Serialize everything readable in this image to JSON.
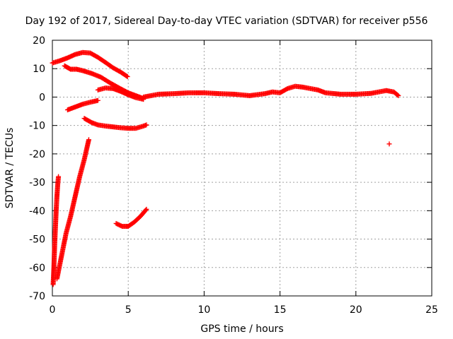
{
  "chart_data": {
    "type": "scatter",
    "title": "Day 192 of 2017, Sidereal Day-to-day VTEC variation (SDTVAR) for receiver p556",
    "xlabel": "GPS time / hours",
    "ylabel": "SDTVAR / TECUs",
    "xlim": [
      0,
      25
    ],
    "ylim": [
      -70,
      20
    ],
    "xticks": [
      0,
      5,
      10,
      15,
      20,
      25
    ],
    "yticks": [
      -70,
      -60,
      -50,
      -40,
      -30,
      -20,
      -10,
      0,
      10,
      20
    ],
    "grid": true,
    "legend": "none",
    "marker": "plus",
    "color": "#ff0000",
    "series": [
      {
        "segments": [
          {
            "x": [
              0.0,
              0.5,
              1.0,
              1.5,
              2.0,
              2.5,
              3.0,
              3.5,
              4.0,
              4.5,
              4.95
            ],
            "y": [
              12.0,
              12.8,
              13.8,
              15.0,
              15.7,
              15.5,
              14.0,
              12.2,
              10.3,
              8.8,
              7.2
            ]
          },
          {
            "x": [
              0.8,
              1.2,
              1.6,
              2.0,
              2.6,
              3.2,
              3.8,
              4.4,
              5.0,
              5.5,
              6.0
            ],
            "y": [
              11.0,
              9.8,
              9.8,
              9.3,
              8.3,
              7.0,
              5.0,
              3.2,
              1.5,
              0.5,
              -0.5
            ]
          },
          {
            "x": [
              3.0,
              3.5,
              4.0,
              4.5,
              5.0,
              5.5,
              6.0
            ],
            "y": [
              2.5,
              3.2,
              3.0,
              2.0,
              0.8,
              -0.2,
              -0.8
            ]
          },
          {
            "x": [
              1.0,
              1.5,
              2.0,
              2.5,
              3.0
            ],
            "y": [
              -4.5,
              -3.5,
              -2.5,
              -1.8,
              -1.2
            ]
          },
          {
            "x": [
              2.1,
              2.6,
              3.0,
              3.5,
              4.0,
              4.5,
              5.0,
              5.5,
              6.0,
              6.2
            ],
            "y": [
              -7.5,
              -9.0,
              -9.8,
              -10.2,
              -10.5,
              -10.8,
              -11.0,
              -11.0,
              -10.2,
              -9.8
            ]
          },
          {
            "x": [
              6.0,
              7.0,
              8.0,
              9.0,
              10.0,
              11.0,
              12.0,
              13.0,
              14.0,
              14.5,
              15.0,
              15.5,
              16.0,
              16.5,
              17.0,
              17.5,
              18.0,
              19.0,
              20.0,
              21.0,
              21.5,
              22.0,
              22.5,
              22.8
            ],
            "y": [
              0.0,
              1.0,
              1.2,
              1.5,
              1.5,
              1.2,
              1.0,
              0.5,
              1.2,
              1.8,
              1.5,
              3.0,
              3.8,
              3.5,
              3.0,
              2.5,
              1.5,
              1.0,
              1.0,
              1.3,
              1.8,
              2.3,
              1.8,
              0.5
            ]
          },
          {
            "x": [
              22.2
            ],
            "y": [
              -16.5
            ]
          },
          {
            "x": [
              0.05,
              0.1,
              0.15,
              0.2,
              0.25,
              0.3,
              0.35,
              0.4
            ],
            "y": [
              -66,
              -60,
              -52,
              -46,
              -40,
              -35,
              -31,
              -28
            ]
          },
          {
            "x": [
              0.3,
              0.6,
              0.9,
              1.2,
              1.5,
              1.8,
              2.1,
              2.4
            ],
            "y": [
              -64,
              -56,
              -48,
              -42,
              -35,
              -28,
              -22,
              -15
            ]
          },
          {
            "x": [
              4.2,
              4.6,
              5.0,
              5.4,
              5.8,
              6.2
            ],
            "y": [
              -44.5,
              -45.5,
              -45.5,
              -44.0,
              -42.0,
              -39.5
            ]
          }
        ]
      }
    ]
  }
}
